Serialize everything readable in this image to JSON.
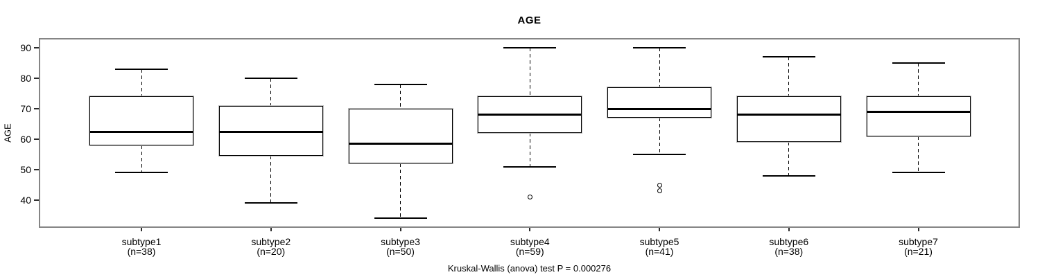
{
  "chart_data": {
    "type": "boxplot",
    "title": "AGE",
    "ylabel": "AGE",
    "ylim": [
      40,
      90
    ],
    "yticks": [
      90,
      80,
      70,
      60,
      50,
      40
    ],
    "grid": false,
    "annotation": "Kruskal-Wallis (anova) test P = 0.000276",
    "groups": [
      {
        "label": "subtype1",
        "n_label": "(n=38)",
        "n": 38,
        "whisker_low": 49,
        "q1": 58,
        "median": 62.5,
        "q3": 74,
        "whisker_high": 83,
        "outliers": []
      },
      {
        "label": "subtype2",
        "n_label": "(n=20)",
        "n": 20,
        "whisker_low": 39,
        "q1": 54.5,
        "median": 62.5,
        "q3": 71,
        "whisker_high": 80,
        "outliers": []
      },
      {
        "label": "subtype3",
        "n_label": "(n=50)",
        "n": 50,
        "whisker_low": 34,
        "q1": 52,
        "median": 58.5,
        "q3": 70,
        "whisker_high": 78,
        "outliers": []
      },
      {
        "label": "subtype4",
        "n_label": "(n=59)",
        "n": 59,
        "whisker_low": 51,
        "q1": 62,
        "median": 68,
        "q3": 74,
        "whisker_high": 90,
        "outliers": [
          41
        ]
      },
      {
        "label": "subtype5",
        "n_label": "(n=41)",
        "n": 41,
        "whisker_low": 55,
        "q1": 67,
        "median": 70,
        "q3": 77,
        "whisker_high": 90,
        "outliers": [
          45,
          43
        ]
      },
      {
        "label": "subtype6",
        "n_label": "(n=38)",
        "n": 38,
        "whisker_low": 48,
        "q1": 59,
        "median": 68,
        "q3": 74,
        "whisker_high": 87,
        "outliers": []
      },
      {
        "label": "subtype7",
        "n_label": "(n=21)",
        "n": 21,
        "whisker_low": 49,
        "q1": 61,
        "median": 69,
        "q3": 74,
        "whisker_high": 85,
        "outliers": []
      }
    ]
  },
  "colors": {
    "frame": "#858585",
    "line": "#000000",
    "background": "#ffffff",
    "text": "#000000"
  }
}
